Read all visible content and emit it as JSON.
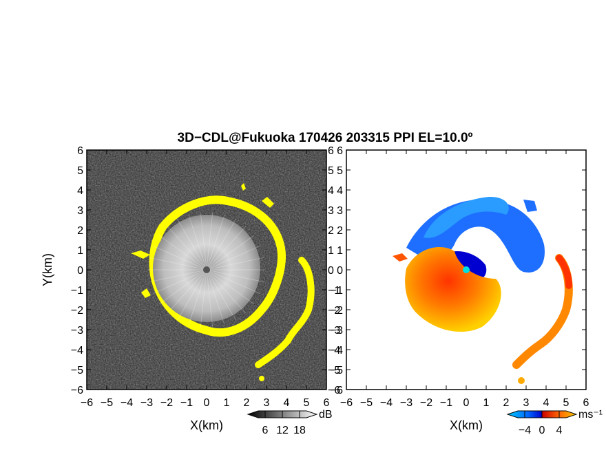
{
  "figure": {
    "title": "3D−CDL@Fukuoka 170426 203315 PPI EL=10.0º"
  },
  "chart_data": [
    {
      "type": "heatmap",
      "panel": "left",
      "quantity": "reflectivity",
      "xlabel": "X(km)",
      "ylabel": "Y(km)",
      "xlim": [
        -6,
        6
      ],
      "ylim": [
        -6,
        6
      ],
      "xticks": [
        "−6",
        "−5",
        "−4",
        "−3",
        "−2",
        "−1",
        "0",
        "1",
        "2",
        "3",
        "4",
        "5",
        "6"
      ],
      "yticks": [
        "−6",
        "−5",
        "−4",
        "−3",
        "−2",
        "−1",
        "0",
        "1",
        "2",
        "3",
        "4",
        "5",
        "6"
      ],
      "background_color": "#2a2a2a",
      "highlight_color": "#ffff00",
      "colorbar": {
        "unit": "dB",
        "ticks": [
          "6",
          "12",
          "18"
        ],
        "tick_values": [
          6,
          12,
          18
        ],
        "range": [
          0,
          24
        ],
        "colors": [
          "#000000",
          "#ffffff"
        ]
      },
      "features": {
        "echo_center": [
          0,
          0
        ],
        "echo_radius_km": 2.6,
        "spiral_band_radius_km": 5.0
      }
    },
    {
      "type": "heatmap",
      "panel": "right",
      "quantity": "doppler velocity",
      "xlabel": "X(km)",
      "xlim": [
        -6,
        6
      ],
      "ylim": [
        -6,
        6
      ],
      "xticks": [
        "−6",
        "−5",
        "−4",
        "−3",
        "−2",
        "−1",
        "0",
        "1",
        "2",
        "3",
        "4",
        "5",
        "6"
      ],
      "yticks": [
        "−6",
        "−5",
        "−4",
        "−3",
        "−2",
        "−1",
        "0",
        "1",
        "2",
        "3",
        "4",
        "5",
        "6"
      ],
      "colorbar": {
        "unit": "ms⁻¹",
        "ticks": [
          "−4",
          "0",
          "4"
        ],
        "tick_values": [
          -4,
          0,
          4
        ],
        "range": [
          -8,
          8
        ],
        "colors": [
          "#00ccff",
          "#0066ff",
          "#0000cc",
          "#cc0000",
          "#ff6600",
          "#ffcc00"
        ]
      },
      "features": {
        "radar_marker_color": "#00e0e0",
        "receding_color": "#ff6600",
        "approaching_color": "#1e6fff"
      }
    }
  ]
}
